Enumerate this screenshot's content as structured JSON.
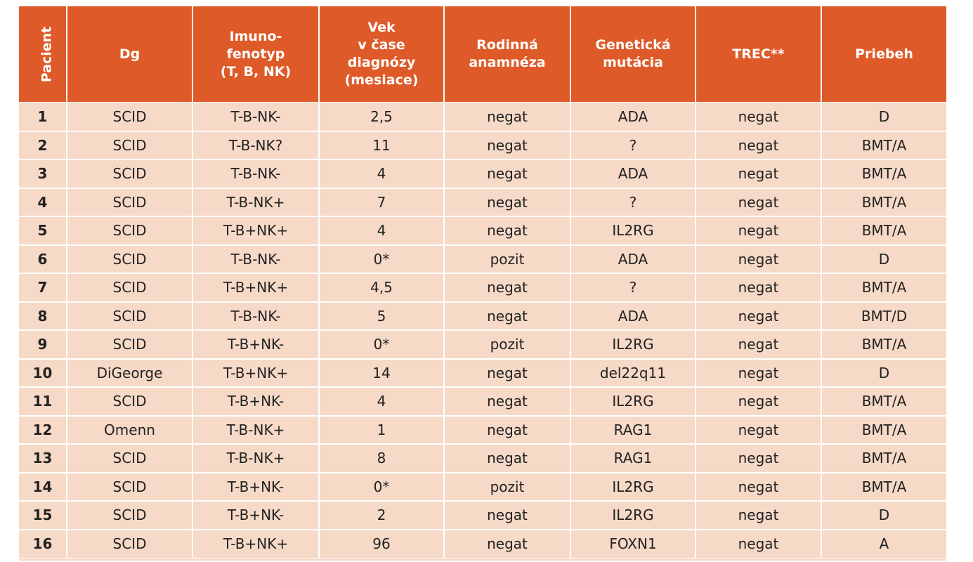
{
  "table": {
    "headers": {
      "pacient": "Pacient",
      "dg": "Dg",
      "fenotyp": "Imuno-\nfenotyp\n(T, B, NK)",
      "vek": "Vek\nv čase\ndiagnózy\n(mesiace)",
      "rodinna": "Rodinná\nanamnéza",
      "genet": "Genetická\nmutácia",
      "trec": "TREC**",
      "priebeh": "Priebeh"
    },
    "rows": [
      [
        "1",
        "SCID",
        "T-B-NK-",
        "2,5",
        "negat",
        "ADA",
        "negat",
        "D"
      ],
      [
        "2",
        "SCID",
        "T-B-NK?",
        "11",
        "negat",
        "?",
        "negat",
        "BMT/A"
      ],
      [
        "3",
        "SCID",
        "T-B-NK-",
        "4",
        "negat",
        "ADA",
        "negat",
        "BMT/A"
      ],
      [
        "4",
        "SCID",
        "T-B-NK+",
        "7",
        "negat",
        "?",
        "negat",
        "BMT/A"
      ],
      [
        "5",
        "SCID",
        "T-B+NK+",
        "4",
        "negat",
        "IL2RG",
        "negat",
        "BMT/A"
      ],
      [
        "6",
        "SCID",
        "T-B-NK-",
        "0*",
        "pozit",
        "ADA",
        "negat",
        "D"
      ],
      [
        "7",
        "SCID",
        "T-B+NK+",
        "4,5",
        "negat",
        "?",
        "negat",
        "BMT/A"
      ],
      [
        "8",
        "SCID",
        "T-B-NK-",
        "5",
        "negat",
        "ADA",
        "negat",
        "BMT/D"
      ],
      [
        "9",
        "SCID",
        "T-B+NK-",
        "0*",
        "pozit",
        "IL2RG",
        "negat",
        "BMT/A"
      ],
      [
        "10",
        "DiGeorge",
        "T-B+NK+",
        "14",
        "negat",
        "del22q11",
        "negat",
        "D"
      ],
      [
        "11",
        "SCID",
        "T-B+NK-",
        "4",
        "negat",
        "IL2RG",
        "negat",
        "BMT/A"
      ],
      [
        "12",
        "Omenn",
        "T-B-NK+",
        "1",
        "negat",
        "RAG1",
        "negat",
        "BMT/A"
      ],
      [
        "13",
        "SCID",
        "T-B-NK+",
        "8",
        "negat",
        "RAG1",
        "negat",
        "BMT/A"
      ],
      [
        "14",
        "SCID",
        "T-B+NK-",
        "0*",
        "pozit",
        "IL2RG",
        "negat",
        "BMT/A"
      ],
      [
        "15",
        "SCID",
        "T-B+NK-",
        "2",
        "negat",
        "IL2RG",
        "negat",
        "D"
      ],
      [
        "16",
        "SCID",
        "T-B+NK+",
        "96",
        "negat",
        "FOXN1",
        "negat",
        "A"
      ]
    ]
  },
  "colors": {
    "header_bg": "#de5a28",
    "header_text": "#ffffff",
    "row_bg": "#f6d9c7",
    "cell_text": "#222222"
  }
}
